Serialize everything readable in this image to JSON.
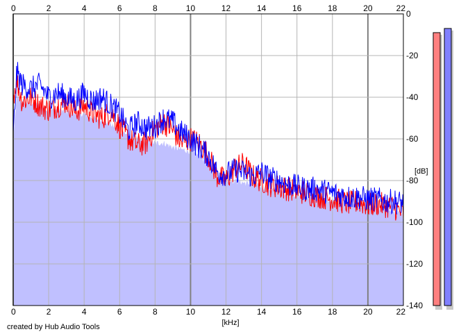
{
  "chart_data": {
    "type": "line",
    "xlabel": "[kHz]",
    "ylabel": "[dB]",
    "xlim": [
      0,
      22
    ],
    "ylim": [
      -140,
      0
    ],
    "x_ticks": [
      0,
      2,
      4,
      6,
      8,
      10,
      12,
      14,
      16,
      18,
      20,
      22
    ],
    "y_ticks": [
      0,
      -20,
      -40,
      -60,
      -80,
      -100,
      -120,
      -140
    ],
    "grid": true,
    "series": [
      {
        "color": "#ff0000",
        "x": [
          0,
          0.2,
          0.5,
          1,
          1.5,
          2,
          2.5,
          3,
          3.5,
          4,
          4.5,
          5,
          5.5,
          6,
          6.5,
          7,
          7.5,
          8,
          8.5,
          9,
          9.5,
          10,
          10.5,
          11,
          11.5,
          12,
          12.5,
          13,
          13.5,
          14,
          14.5,
          15,
          15.5,
          16,
          16.5,
          17,
          17.5,
          18,
          18.5,
          19,
          19.5,
          20,
          20.5,
          21,
          21.5,
          22
        ],
        "y": [
          -40,
          -32,
          -42,
          -40,
          -44,
          -46,
          -44,
          -42,
          -47,
          -44,
          -48,
          -50,
          -47,
          -54,
          -60,
          -63,
          -62,
          -55,
          -52,
          -56,
          -62,
          -60,
          -62,
          -68,
          -78,
          -80,
          -74,
          -72,
          -78,
          -80,
          -82,
          -83,
          -84,
          -85,
          -86,
          -87,
          -88,
          -89,
          -90,
          -91,
          -90,
          -92,
          -91,
          -92,
          -93,
          -96
        ]
      },
      {
        "color": "#0000ff",
        "x": [
          0,
          0.2,
          0.5,
          1,
          1.5,
          2,
          2.5,
          3,
          3.5,
          4,
          4.5,
          5,
          5.5,
          6,
          6.5,
          7,
          7.5,
          8,
          8.5,
          9,
          9.5,
          10,
          10.5,
          11,
          11.5,
          12,
          12.5,
          13,
          13.5,
          14,
          14.5,
          15,
          15.5,
          16,
          16.5,
          17,
          17.5,
          18,
          18.5,
          19,
          19.5,
          20,
          20.5,
          21,
          21.5,
          22
        ],
        "y": [
          -60,
          -28,
          -34,
          -36,
          -34,
          -40,
          -38,
          -40,
          -42,
          -38,
          -42,
          -40,
          -44,
          -48,
          -56,
          -52,
          -55,
          -54,
          -50,
          -52,
          -57,
          -60,
          -64,
          -68,
          -76,
          -77,
          -75,
          -76,
          -78,
          -76,
          -79,
          -80,
          -82,
          -83,
          -84,
          -84,
          -85,
          -86,
          -87,
          -88,
          -88,
          -89,
          -89,
          -90,
          -90,
          -91
        ]
      },
      {
        "color": "#c0c0ff",
        "x": [
          0,
          0.2,
          0.5,
          1,
          1.5,
          2,
          2.5,
          3,
          3.5,
          4,
          4.5,
          5,
          5.5,
          6,
          6.5,
          7,
          7.5,
          8,
          8.5,
          9,
          9.5,
          10,
          10.5,
          11,
          11.5,
          12,
          12.5,
          13,
          13.5,
          14,
          14.5,
          15,
          15.5,
          16,
          16.5,
          17,
          17.5,
          18,
          18.5,
          19,
          19.5,
          20,
          20.5,
          21,
          21.5,
          22
        ],
        "y": [
          -60,
          -40,
          -42,
          -43,
          -44,
          -46,
          -46,
          -47,
          -48,
          -48,
          -50,
          -51,
          -53,
          -56,
          -58,
          -60,
          -61,
          -62,
          -62,
          -64,
          -65,
          -66,
          -68,
          -72,
          -78,
          -80,
          -80,
          -81,
          -82,
          -83,
          -84,
          -85,
          -86,
          -87,
          -88,
          -88,
          -89,
          -90,
          -91,
          -92,
          -92,
          -93,
          -93,
          -94,
          -95,
          -97
        ]
      }
    ],
    "level_meters": [
      {
        "color": "#ff8080",
        "value": -9
      },
      {
        "color": "#8080ff",
        "value": -7
      }
    ]
  },
  "footer": {
    "credit": "created by Hub Audio Tools"
  }
}
